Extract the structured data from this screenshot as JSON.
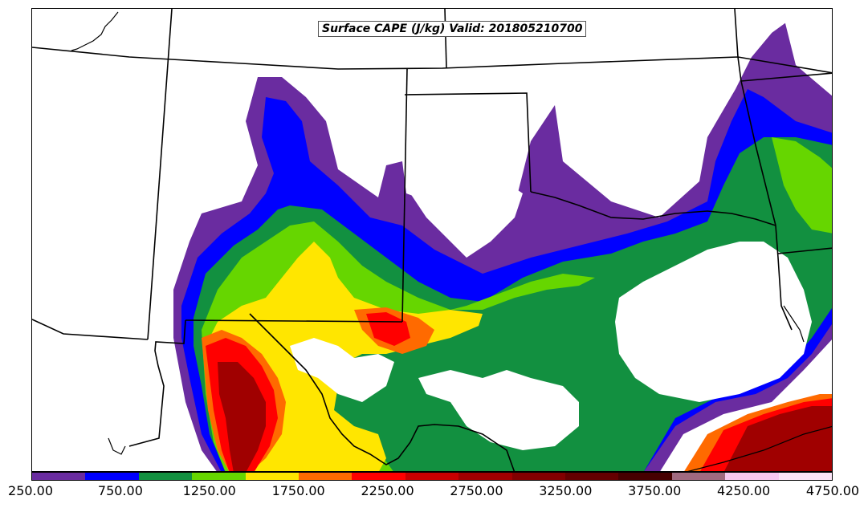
{
  "title": "Surface CAPE (J/kg) Valid: 201805210700",
  "colorbar": {
    "colors": [
      "#6a2ca0",
      "#0000ff",
      "#129040",
      "#66d600",
      "#ffe600",
      "#ff6a00",
      "#ff0000",
      "#c80000",
      "#a00000",
      "#820000",
      "#640000",
      "#460000",
      "#a06a80",
      "#f7c8f0",
      "#fbe4f7"
    ],
    "labels": [
      "250.00",
      "750.00",
      "1250.00",
      "1750.00",
      "2250.00",
      "2750.00",
      "3250.00",
      "3750.00",
      "4250.00",
      "4750.00"
    ]
  }
}
